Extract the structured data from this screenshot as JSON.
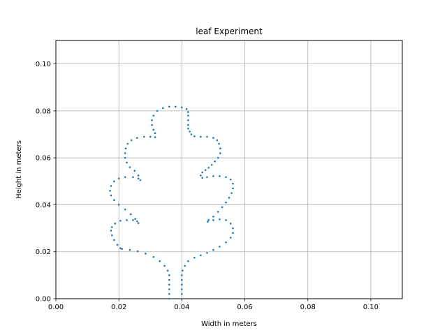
{
  "chart_data": {
    "type": "scatter",
    "title": "leaf Experiment",
    "xlabel": "Width in meters",
    "ylabel": "Height in meters",
    "xlim": [
      0,
      0.11
    ],
    "ylim": [
      0,
      0.11
    ],
    "xticks": [
      0.0,
      0.02,
      0.04,
      0.06,
      0.08,
      0.1
    ],
    "yticks": [
      0.0,
      0.02,
      0.04,
      0.06,
      0.08,
      0.1
    ],
    "xtick_labels": [
      "0.00",
      "0.02",
      "0.04",
      "0.06",
      "0.08",
      "0.10"
    ],
    "ytick_labels": [
      "0.00",
      "0.02",
      "0.04",
      "0.06",
      "0.08",
      "0.10"
    ],
    "grid": true,
    "legend": "none",
    "marker_color": "#1f77b4",
    "series": [
      {
        "points": [
          [
            0.036,
            0.0
          ],
          [
            0.036,
            0.002
          ],
          [
            0.036,
            0.004
          ],
          [
            0.036,
            0.006
          ],
          [
            0.036,
            0.008
          ],
          [
            0.036,
            0.01
          ],
          [
            0.0355,
            0.012
          ],
          [
            0.0345,
            0.014
          ],
          [
            0.033,
            0.016
          ],
          [
            0.031,
            0.0178
          ],
          [
            0.0285,
            0.0192
          ],
          [
            0.026,
            0.0202
          ],
          [
            0.0235,
            0.0208
          ],
          [
            0.021,
            0.0212
          ],
          [
            0.0205,
            0.0215
          ],
          [
            0.0195,
            0.023
          ],
          [
            0.0185,
            0.025
          ],
          [
            0.0178,
            0.027
          ],
          [
            0.0175,
            0.029
          ],
          [
            0.0178,
            0.0305
          ],
          [
            0.0188,
            0.032
          ],
          [
            0.0205,
            0.0332
          ],
          [
            0.0225,
            0.0335
          ],
          [
            0.0245,
            0.0335
          ],
          [
            0.0258,
            0.033
          ],
          [
            0.0262,
            0.0322
          ],
          [
            0.0252,
            0.034
          ],
          [
            0.0238,
            0.036
          ],
          [
            0.022,
            0.038
          ],
          [
            0.02,
            0.04
          ],
          [
            0.0185,
            0.042
          ],
          [
            0.0175,
            0.044
          ],
          [
            0.0172,
            0.046
          ],
          [
            0.0175,
            0.048
          ],
          [
            0.0185,
            0.05
          ],
          [
            0.02,
            0.0512
          ],
          [
            0.022,
            0.0518
          ],
          [
            0.0245,
            0.0518
          ],
          [
            0.0262,
            0.0512
          ],
          [
            0.0268,
            0.0505
          ],
          [
            0.0262,
            0.0525
          ],
          [
            0.025,
            0.0545
          ],
          [
            0.0235,
            0.056
          ],
          [
            0.0225,
            0.058
          ],
          [
            0.022,
            0.06
          ],
          [
            0.022,
            0.062
          ],
          [
            0.0222,
            0.064
          ],
          [
            0.0228,
            0.066
          ],
          [
            0.024,
            0.0675
          ],
          [
            0.0258,
            0.0685
          ],
          [
            0.028,
            0.069
          ],
          [
            0.03,
            0.069
          ],
          [
            0.0315,
            0.0688
          ],
          [
            0.0315,
            0.0705
          ],
          [
            0.031,
            0.072
          ],
          [
            0.0305,
            0.074
          ],
          [
            0.0305,
            0.076
          ],
          [
            0.031,
            0.078
          ],
          [
            0.0322,
            0.08
          ],
          [
            0.034,
            0.0812
          ],
          [
            0.036,
            0.0818
          ],
          [
            0.038,
            0.0818
          ],
          [
            0.04,
            0.0815
          ],
          [
            0.0415,
            0.0808
          ],
          [
            0.042,
            0.0795
          ],
          [
            0.042,
            0.078
          ],
          [
            0.042,
            0.076
          ],
          [
            0.042,
            0.074
          ],
          [
            0.042,
            0.0725
          ],
          [
            0.0425,
            0.0712
          ],
          [
            0.043,
            0.07
          ],
          [
            0.044,
            0.0692
          ],
          [
            0.046,
            0.069
          ],
          [
            0.048,
            0.069
          ],
          [
            0.05,
            0.0685
          ],
          [
            0.0512,
            0.0675
          ],
          [
            0.0518,
            0.066
          ],
          [
            0.0522,
            0.064
          ],
          [
            0.0522,
            0.062
          ],
          [
            0.0515,
            0.06
          ],
          [
            0.0505,
            0.0585
          ],
          [
            0.0495,
            0.057
          ],
          [
            0.0485,
            0.0558
          ],
          [
            0.0475,
            0.0548
          ],
          [
            0.0465,
            0.0538
          ],
          [
            0.046,
            0.0525
          ],
          [
            0.0465,
            0.0515
          ],
          [
            0.048,
            0.0518
          ],
          [
            0.05,
            0.0522
          ],
          [
            0.052,
            0.0522
          ],
          [
            0.054,
            0.0518
          ],
          [
            0.0555,
            0.0508
          ],
          [
            0.0562,
            0.049
          ],
          [
            0.0562,
            0.047
          ],
          [
            0.0558,
            0.045
          ],
          [
            0.055,
            0.043
          ],
          [
            0.054,
            0.041
          ],
          [
            0.0528,
            0.039
          ],
          [
            0.0515,
            0.037
          ],
          [
            0.05,
            0.035
          ],
          [
            0.0485,
            0.0335
          ],
          [
            0.0482,
            0.0328
          ],
          [
            0.05,
            0.0335
          ],
          [
            0.052,
            0.0338
          ],
          [
            0.054,
            0.0335
          ],
          [
            0.0555,
            0.032
          ],
          [
            0.0562,
            0.03
          ],
          [
            0.0562,
            0.028
          ],
          [
            0.0555,
            0.026
          ],
          [
            0.054,
            0.024
          ],
          [
            0.052,
            0.0222
          ],
          [
            0.05,
            0.0208
          ],
          [
            0.048,
            0.0195
          ],
          [
            0.046,
            0.0185
          ],
          [
            0.044,
            0.0175
          ],
          [
            0.042,
            0.016
          ],
          [
            0.041,
            0.014
          ],
          [
            0.0402,
            0.012
          ],
          [
            0.04,
            0.01
          ],
          [
            0.04,
            0.008
          ],
          [
            0.04,
            0.006
          ],
          [
            0.04,
            0.004
          ],
          [
            0.04,
            0.002
          ],
          [
            0.04,
            0.0
          ]
        ]
      }
    ]
  }
}
